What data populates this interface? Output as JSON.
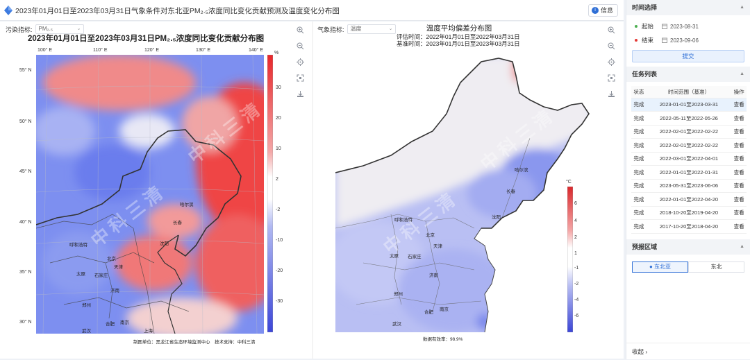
{
  "header": {
    "title": "2023年01月01日至2023年03月31日气象条件对东北亚PM₂.₅浓度同比变化贡献预测及温度变化分布图",
    "info_label": "信息"
  },
  "left_panel": {
    "selector_label": "污染指标:",
    "selector_value": "PM₂.₅",
    "title": "2023年01月01日至2023年03月31日PM₂.₅浓度同比变化贡献分布图",
    "x_ticks": [
      "100° E",
      "110° E",
      "120° E",
      "130° E",
      "140° E"
    ],
    "y_ticks": [
      "55° N",
      "50° N",
      "45° N",
      "40° N",
      "35° N",
      "30° N"
    ],
    "colorbar_unit": "%",
    "colorbar_ticks": [
      "30",
      "20",
      "10",
      "2",
      "-2",
      "-10",
      "-20",
      "-30"
    ],
    "cities": [
      "哈尔滨",
      "长春",
      "沈阳",
      "呼和浩特",
      "北京",
      "天津",
      "太原",
      "石家庄",
      "济南",
      "郑州",
      "合肥",
      "南京",
      "上海",
      "武汉"
    ],
    "footer": "制图单位：黑龙江省生态环境监测中心　技术支持：中科三清",
    "watermark": "中科三清"
  },
  "mid_panel": {
    "selector_label": "气象指标:",
    "selector_value": "温度",
    "title": "温度平均偏差分布图",
    "eval_time": "评估时间：2022年01月01日至2022年03月31日",
    "base_time": "基准时间：2023年01月01日至2023年03月31日",
    "colorbar_unit": "°C",
    "colorbar_ticks": [
      "6",
      "4",
      "2",
      "1",
      "-1",
      "-2",
      "-4",
      "-6"
    ],
    "cities": [
      "哈尔滨",
      "长春",
      "沈阳",
      "呼和浩特",
      "北京",
      "天津",
      "太原",
      "石家庄",
      "济南",
      "郑州",
      "合肥",
      "南京",
      "武汉"
    ],
    "footer": "数据有效率：98.9%",
    "watermark": "中科三清"
  },
  "tools": [
    "zoom-in-icon",
    "zoom-out-icon",
    "locate-icon",
    "fullscreen-icon",
    "download-icon"
  ],
  "sidebar": {
    "time_section": {
      "title": "时间选择",
      "start_label": "起始",
      "start_date": "2023-08-31",
      "end_label": "结束",
      "end_date": "2023-09-06",
      "submit_label": "提交"
    },
    "task_section": {
      "title": "任务列表",
      "headers": [
        "状态",
        "时间范围（基准）",
        "操作"
      ],
      "rows": [
        {
          "status": "完成",
          "range": "2023-01-01至2023-03-31",
          "action": "查看"
        },
        {
          "status": "完成",
          "range": "2022-05-11至2022-05-26",
          "action": "查看"
        },
        {
          "status": "完成",
          "range": "2022-02-01至2022-02-22",
          "action": "查看"
        },
        {
          "status": "完成",
          "range": "2022-02-01至2022-02-22",
          "action": "查看"
        },
        {
          "status": "完成",
          "range": "2022-03-01至2022-04-01",
          "action": "查看"
        },
        {
          "status": "完成",
          "range": "2022-01-01至2022-01-31",
          "action": "查看"
        },
        {
          "status": "完成",
          "range": "2023-05-31至2023-06-06",
          "action": "查看"
        },
        {
          "status": "完成",
          "range": "2022-01-01至2022-04-20",
          "action": "查看"
        },
        {
          "status": "完成",
          "range": "2018-10-20至2019-04-20",
          "action": "查看"
        },
        {
          "status": "完成",
          "range": "2017-10-20至2018-04-20",
          "action": "查看"
        }
      ]
    },
    "region_section": {
      "title": "预报区域",
      "options": [
        "东北亚",
        "东北"
      ],
      "selected": "东北亚"
    },
    "collapse_label": "收起"
  },
  "colors": {
    "accent": "#2f6fd6",
    "success": "#4caf50",
    "start_dot": "#4caf50",
    "end_dot": "#e53935"
  }
}
